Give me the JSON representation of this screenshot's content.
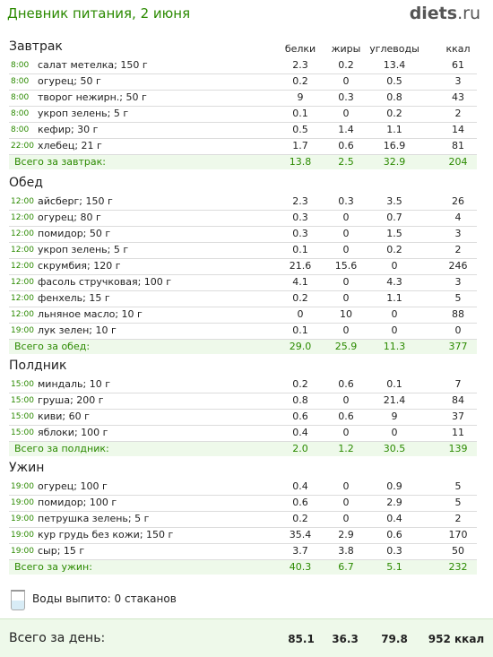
{
  "header": {
    "title": "Дневник питания, 2 июня",
    "brand": "diets",
    "brand_tld": ".ru"
  },
  "columns": {
    "proteins": "белки",
    "fats": "жиры",
    "carbs": "углеводы",
    "kcal": "ккал"
  },
  "meals": [
    {
      "title": "Завтрак",
      "items": [
        [
          "8:00",
          "салат метелка; 150 г",
          "2.3",
          "0.2",
          "13.4",
          "61"
        ],
        [
          "8:00",
          "огурец; 50 г",
          "0.2",
          "0",
          "0.5",
          "3"
        ],
        [
          "8:00",
          "творог нежирн.; 50 г",
          "9",
          "0.3",
          "0.8",
          "43"
        ],
        [
          "8:00",
          "укроп зелень; 5 г",
          "0.1",
          "0",
          "0.2",
          "2"
        ],
        [
          "8:00",
          "кефир; 30 г",
          "0.5",
          "1.4",
          "1.1",
          "14"
        ],
        [
          "22:00",
          "хлебец; 21 г",
          "1.7",
          "0.6",
          "16.9",
          "81"
        ]
      ],
      "total": [
        "Всего за завтрак:",
        "13.8",
        "2.5",
        "32.9",
        "204"
      ]
    },
    {
      "title": "Обед",
      "items": [
        [
          "12:00",
          "айсберг; 150 г",
          "2.3",
          "0.3",
          "3.5",
          "26"
        ],
        [
          "12:00",
          "огурец; 80 г",
          "0.3",
          "0",
          "0.7",
          "4"
        ],
        [
          "12:00",
          "помидор; 50 г",
          "0.3",
          "0",
          "1.5",
          "3"
        ],
        [
          "12:00",
          "укроп зелень; 5 г",
          "0.1",
          "0",
          "0.2",
          "2"
        ],
        [
          "12:00",
          "скрумбия; 120 г",
          "21.6",
          "15.6",
          "0",
          "246"
        ],
        [
          "12:00",
          "фасоль стручковая; 100 г",
          "4.1",
          "0",
          "4.3",
          "3"
        ],
        [
          "12:00",
          "фенхель; 15 г",
          "0.2",
          "0",
          "1.1",
          "5"
        ],
        [
          "12:00",
          "льняное масло; 10 г",
          "0",
          "10",
          "0",
          "88"
        ],
        [
          "19:00",
          "лук зелен; 10 г",
          "0.1",
          "0",
          "0",
          "0"
        ]
      ],
      "total": [
        "Всего за обед:",
        "29.0",
        "25.9",
        "11.3",
        "377"
      ]
    },
    {
      "title": "Полдник",
      "items": [
        [
          "15:00",
          "миндаль; 10 г",
          "0.2",
          "0.6",
          "0.1",
          "7"
        ],
        [
          "15:00",
          "груша; 200 г",
          "0.8",
          "0",
          "21.4",
          "84"
        ],
        [
          "15:00",
          "киви; 60 г",
          "0.6",
          "0.6",
          "9",
          "37"
        ],
        [
          "15:00",
          "яблоки; 100 г",
          "0.4",
          "0",
          "0",
          "11"
        ]
      ],
      "total": [
        "Всего за полдник:",
        "2.0",
        "1.2",
        "30.5",
        "139"
      ]
    },
    {
      "title": "Ужин",
      "items": [
        [
          "19:00",
          "огурец; 100 г",
          "0.4",
          "0",
          "0.9",
          "5"
        ],
        [
          "19:00",
          "помидор; 100 г",
          "0.6",
          "0",
          "2.9",
          "5"
        ],
        [
          "19:00",
          "петрушка зелень; 5 г",
          "0.2",
          "0",
          "0.4",
          "2"
        ],
        [
          "19:00",
          "кур грудь без кожи; 150 г",
          "35.4",
          "2.9",
          "0.6",
          "170"
        ],
        [
          "19:00",
          "сыр; 15 г",
          "3.7",
          "3.8",
          "0.3",
          "50"
        ]
      ],
      "total": [
        "Всего за ужин:",
        "40.3",
        "6.7",
        "5.1",
        "232"
      ]
    }
  ],
  "water": {
    "text": "Воды выпито: 0 стаканов"
  },
  "day_total": {
    "label": "Всего за день:",
    "proteins": "85.1",
    "fats": "36.3",
    "carbs": "79.8",
    "kcal": "952 ккал"
  }
}
